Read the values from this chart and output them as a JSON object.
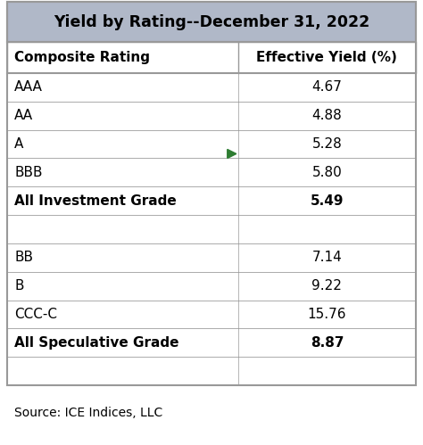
{
  "title": "Yield by Rating--December 31, 2022",
  "col1_header": "Composite Rating",
  "col2_header": "Effective Yield (%)",
  "rows": [
    {
      "label": "AAA",
      "value": "4.67",
      "bold": false
    },
    {
      "label": "AA",
      "value": "4.88",
      "bold": false
    },
    {
      "label": "A",
      "value": "5.28",
      "bold": false
    },
    {
      "label": "BBB",
      "value": "5.80",
      "bold": false
    },
    {
      "label": "All Investment Grade",
      "value": "5.49",
      "bold": true
    },
    {
      "label": "",
      "value": "",
      "bold": false
    },
    {
      "label": "BB",
      "value": "7.14",
      "bold": false
    },
    {
      "label": "B",
      "value": "9.22",
      "bold": false
    },
    {
      "label": "CCC-C",
      "value": "15.76",
      "bold": false
    },
    {
      "label": "All Speculative Grade",
      "value": "8.87",
      "bold": true
    },
    {
      "label": "",
      "value": "",
      "bold": false
    }
  ],
  "source_text": "Source: ICE Indices, LLC",
  "title_bg_color": "#b0b8c8",
  "header_bg_color": "#ffffff",
  "row_bg_color": "#ffffff",
  "border_color": "#999999",
  "title_fontsize": 12.5,
  "header_fontsize": 11,
  "data_fontsize": 11,
  "source_fontsize": 10,
  "green_arrow_row": 3,
  "green_arrow_color": "#2e7d32",
  "col_split": 0.565
}
